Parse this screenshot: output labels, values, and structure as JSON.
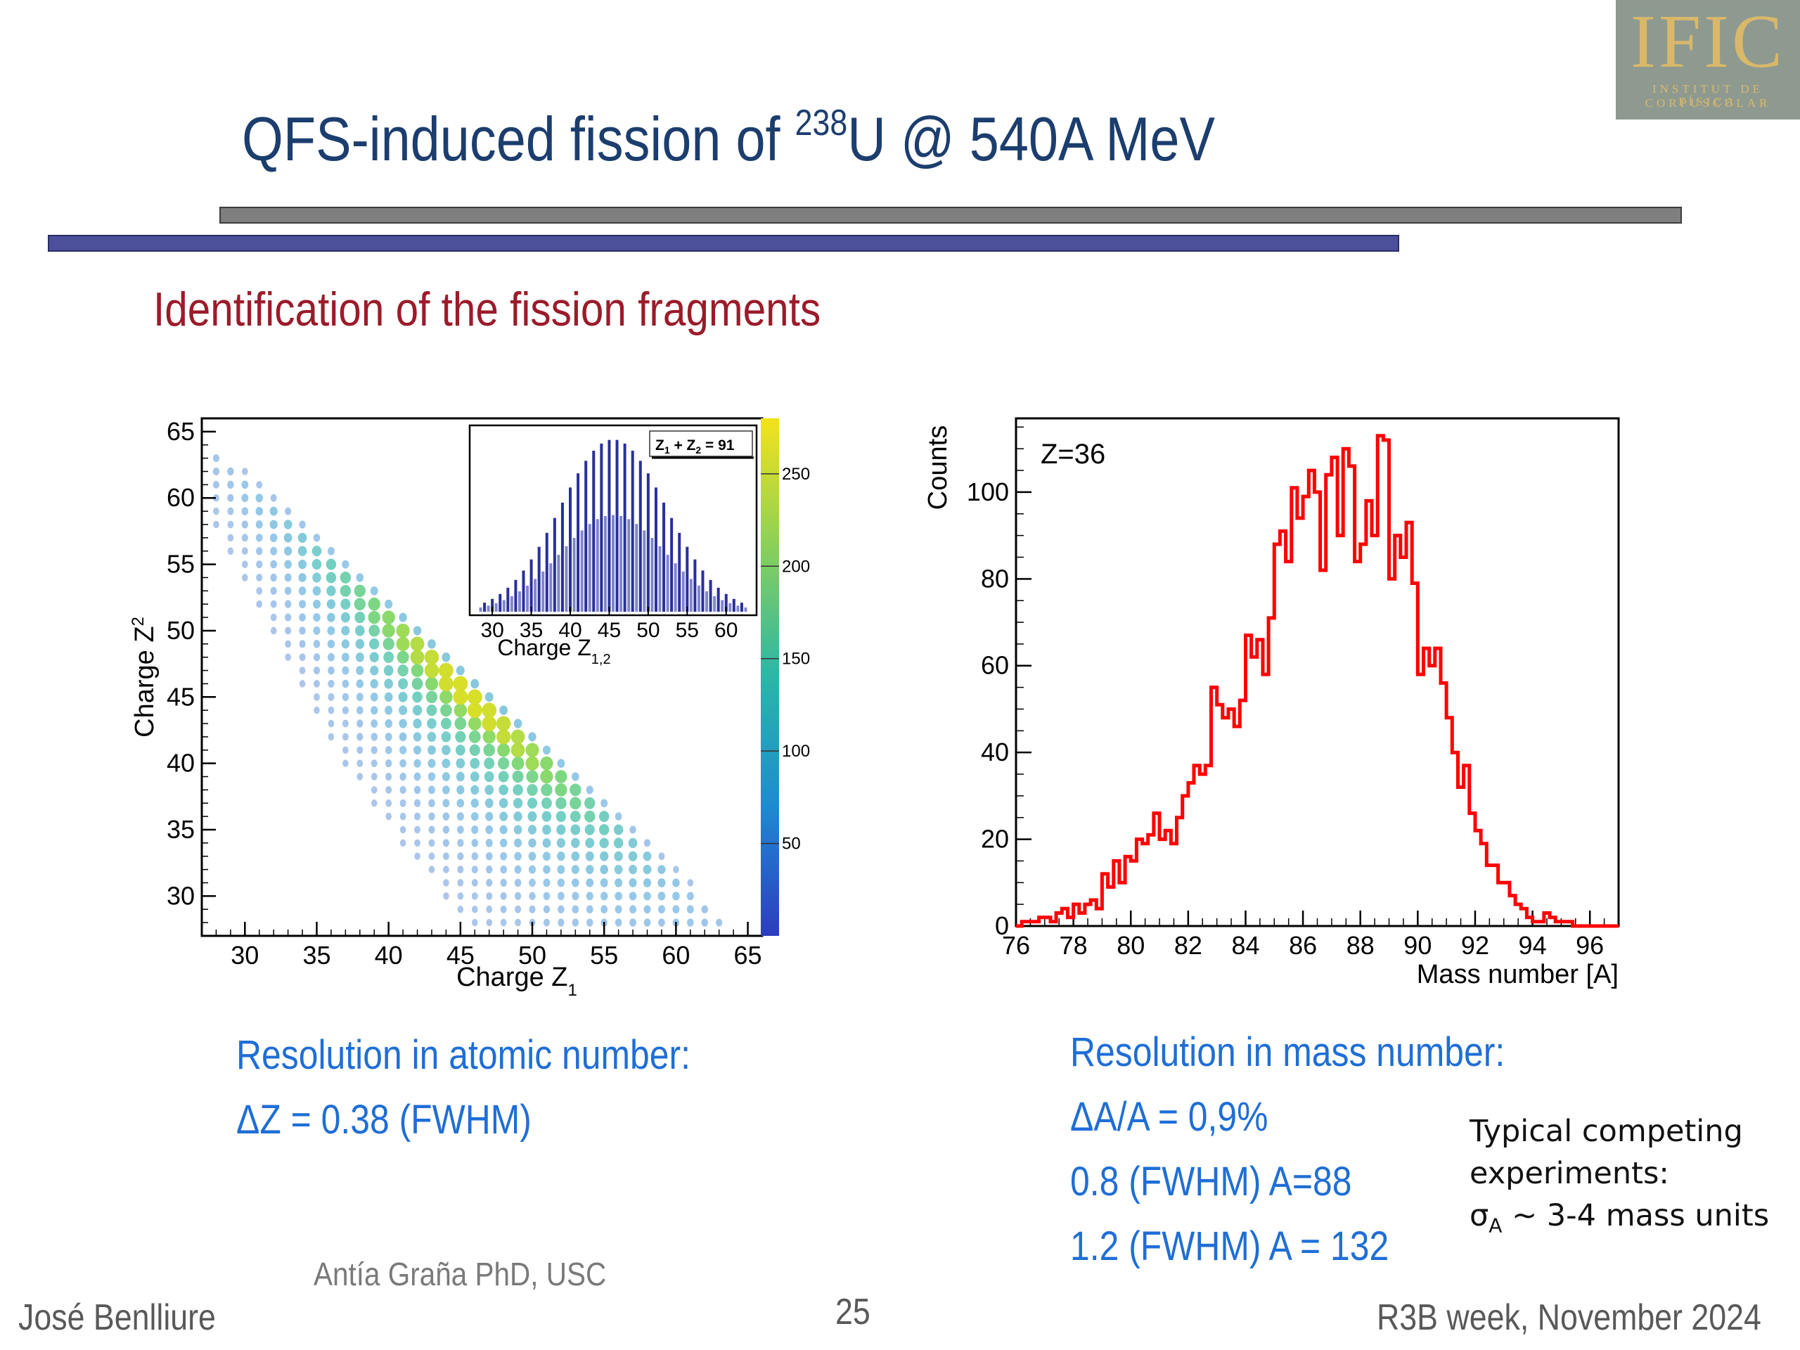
{
  "logo": {
    "text": "IFIC",
    "line1": "INSTITUT DE FÍSICA",
    "line2": "CORPUSCULAR"
  },
  "title": {
    "pre": "QFS-induced fission of ",
    "sup": "238",
    "post": "U @ 540A MeV"
  },
  "subtitle": "Identification of the fission fragments",
  "left_text": {
    "line1": "Resolution in atomic number:",
    "line2": "ΔZ = 0.38 (FWHM)"
  },
  "right_text": {
    "line1": "Resolution in mass number:",
    "line2": "ΔA/A = 0,9%",
    "line3": "0.8 (FWHM) A=88",
    "line4": "1.2 (FWHM) A = 132"
  },
  "note": {
    "line1": "Typical competing",
    "line2": "experiments:",
    "sigma": "σ",
    "sub": "A",
    "rest": " ~ 3-4 mass units"
  },
  "credit": "Antía Graña PhD, USC",
  "footer": {
    "author": "José Benlliure",
    "page": "25",
    "event": "R3B week, November 2024"
  },
  "colors": {
    "title": "#1c3e6e",
    "subtitle": "#9b1b2a",
    "blue_text": "#1f6ed6",
    "histogram": "#ff0000",
    "bar_gray": "#7f7f7f",
    "bar_blue": "#4c4f9a"
  },
  "chart_data": [
    {
      "type": "heatmap",
      "xlabel": "Charge Z",
      "xlabel_sub": "1",
      "ylabel": "Charge Z",
      "ylabel_sub": "2",
      "xlim": [
        27,
        66
      ],
      "ylim": [
        27,
        66
      ],
      "xticks": [
        "30",
        "35",
        "40",
        "45",
        "50",
        "55",
        "60",
        "65"
      ],
      "yticks": [
        "30",
        "35",
        "40",
        "45",
        "50",
        "55",
        "60",
        "65"
      ],
      "colorbar": {
        "range": [
          0,
          280
        ],
        "ticks": [
          "50",
          "100",
          "150",
          "200",
          "250"
        ],
        "colors": [
          "#2c3dbc",
          "#1f8ad2",
          "#2bb6a8",
          "#6ad25a",
          "#f4e21c"
        ]
      },
      "description_sum": 91,
      "inset": {
        "type": "bar",
        "label": "Z",
        "label_sub1": "1",
        "label_mid": " + Z",
        "label_sub2": "2",
        "label_end": " = 91",
        "xlabel": "Charge Z",
        "xlabel_sub": "1,2",
        "xticks": [
          "30",
          "35",
          "40",
          "45",
          "50",
          "55",
          "60"
        ],
        "xlim": [
          28,
          63
        ],
        "center": 45.5,
        "sigma": 6.8,
        "peak": 1.0
      }
    },
    {
      "type": "line",
      "step": true,
      "annotation": "Z=36",
      "xlabel": "Mass number [A]",
      "ylabel": "Counts",
      "xlim": [
        76,
        97
      ],
      "ylim": [
        0,
        117
      ],
      "xticks": [
        "76",
        "78",
        "80",
        "82",
        "84",
        "86",
        "88",
        "90",
        "92",
        "94",
        "96"
      ],
      "yticks": [
        "0",
        "20",
        "40",
        "60",
        "80",
        "100"
      ],
      "x": [
        76.0,
        76.2,
        76.4,
        76.6,
        76.8,
        77.0,
        77.2,
        77.4,
        77.6,
        77.8,
        78.0,
        78.2,
        78.4,
        78.6,
        78.8,
        79.0,
        79.2,
        79.4,
        79.6,
        79.8,
        80.0,
        80.2,
        80.4,
        80.6,
        80.8,
        81.0,
        81.2,
        81.4,
        81.6,
        81.8,
        82.0,
        82.2,
        82.4,
        82.6,
        82.8,
        83.0,
        83.2,
        83.4,
        83.6,
        83.8,
        84.0,
        84.2,
        84.4,
        84.6,
        84.8,
        85.0,
        85.2,
        85.4,
        85.6,
        85.8,
        86.0,
        86.2,
        86.4,
        86.6,
        86.8,
        87.0,
        87.2,
        87.4,
        87.6,
        87.8,
        88.0,
        88.2,
        88.4,
        88.6,
        88.8,
        89.0,
        89.2,
        89.4,
        89.6,
        89.8,
        90.0,
        90.2,
        90.4,
        90.6,
        90.8,
        91.0,
        91.2,
        91.4,
        91.6,
        91.8,
        92.0,
        92.2,
        92.4,
        92.6,
        92.8,
        93.0,
        93.2,
        93.4,
        93.6,
        93.8,
        94.0,
        94.2,
        94.4,
        94.6,
        94.8,
        95.0,
        95.2,
        95.4,
        95.6,
        95.8,
        96.0,
        96.2,
        96.4,
        96.6,
        96.8
      ],
      "values": [
        0,
        1,
        1,
        1,
        2,
        2,
        1,
        3,
        4,
        2,
        5,
        3,
        5,
        6,
        4,
        12,
        9,
        15,
        10,
        16,
        15,
        20,
        19,
        21,
        26,
        20,
        22,
        19,
        25,
        30,
        33,
        37,
        35,
        37,
        55,
        51,
        48,
        50,
        46,
        52,
        67,
        62,
        66,
        58,
        71,
        88,
        91,
        84,
        101,
        94,
        99,
        105,
        100,
        82,
        104,
        108,
        90,
        110,
        106,
        84,
        88,
        98,
        90,
        113,
        112,
        80,
        90,
        85,
        93,
        79,
        58,
        64,
        60,
        64,
        56,
        48,
        40,
        32,
        37,
        26,
        22,
        19,
        14,
        14,
        10,
        10,
        7,
        5,
        4,
        2,
        1,
        1,
        3,
        2,
        1,
        1,
        1,
        0,
        0,
        0,
        0,
        0,
        0,
        0,
        0
      ]
    }
  ]
}
